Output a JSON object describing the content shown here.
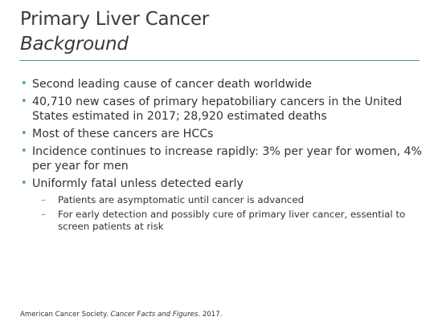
{
  "slide": {
    "title": "Primary Liver Cancer",
    "subtitle": "Background",
    "bullet_marker": "•",
    "sub_marker": "–",
    "bullets": [
      {
        "text": "Second leading cause of cancer death worldwide"
      },
      {
        "text": "40,710 new cases of primary hepatobiliary cancers in the United States estimated in 2017; 28,920 estimated deaths"
      },
      {
        "text": "Most of these cancers are HCCs"
      },
      {
        "text": "Incidence continues to increase rapidly: 3% per year for women, 4% per year for men"
      },
      {
        "text": "Uniformly fatal unless detected early"
      }
    ],
    "sub_bullets": [
      {
        "text": "Patients are asymptomatic until cancer is advanced"
      },
      {
        "text": "For early detection and possibly cure of primary liver cancer, essential to screen patients at risk"
      }
    ],
    "footer": {
      "source": "American Cancer Society.",
      "publication": "Cancer Facts and Figures",
      "year": ". 2017."
    }
  },
  "colors": {
    "accent": "#4a9aa3",
    "text": "#333333"
  }
}
